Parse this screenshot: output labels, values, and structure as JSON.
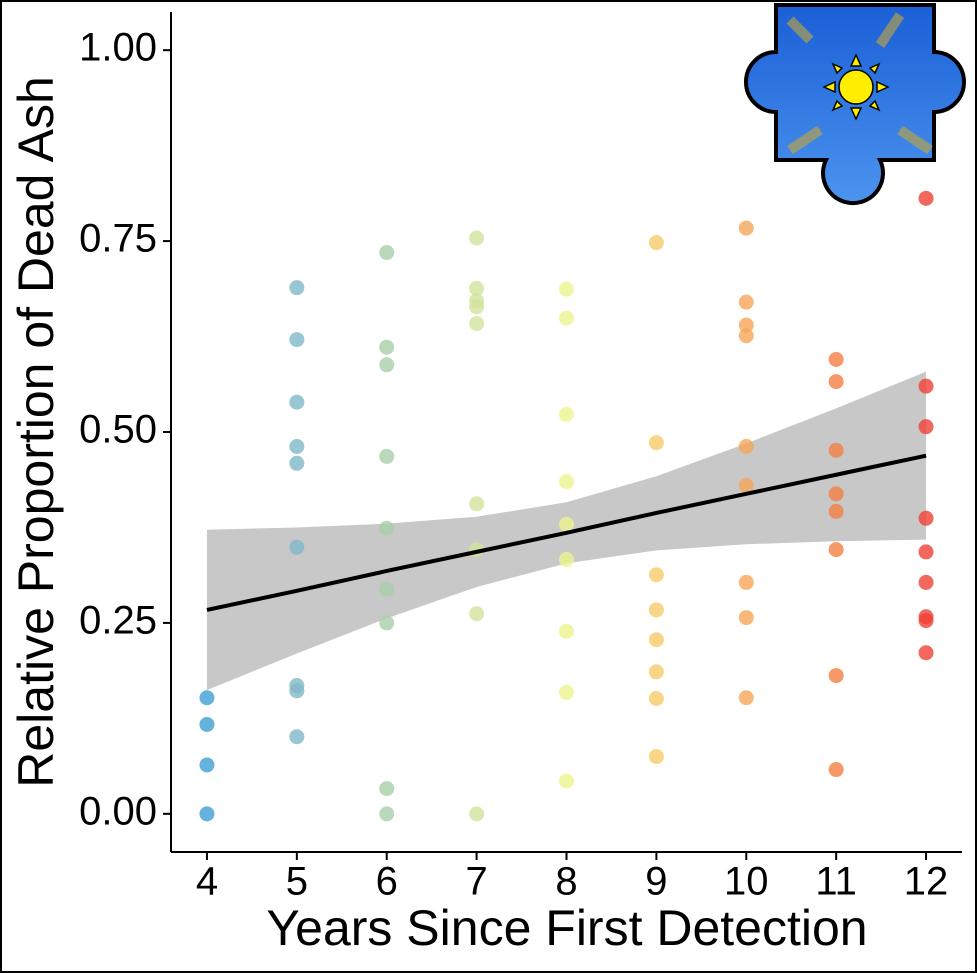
{
  "chart_data": {
    "type": "scatter",
    "xlabel": "Years Since First Detection",
    "ylabel": "Relative Proportion of Dead Ash",
    "xlim": [
      3.6,
      12.4
    ],
    "ylim": [
      -0.05,
      1.05
    ],
    "xticks": [
      4,
      5,
      6,
      7,
      8,
      9,
      10,
      11,
      12
    ],
    "yticks": [
      {
        "value": 0,
        "label": "0.00"
      },
      {
        "value": 0.25,
        "label": "0.25"
      },
      {
        "value": 0.5,
        "label": "0.50"
      },
      {
        "value": 0.75,
        "label": "0.75"
      },
      {
        "value": 1,
        "label": "1.00"
      }
    ],
    "series": [
      {
        "color": "#3f9fd4",
        "x": [
          4,
          4,
          4,
          4
        ],
        "values": [
          0.152,
          0.117,
          0.064,
          0
        ]
      },
      {
        "color": "#80b8c8",
        "x": [
          5,
          5,
          5,
          5,
          5,
          5,
          5,
          5,
          5
        ],
        "values": [
          0.689,
          0.621,
          0.539,
          0.481,
          0.459,
          0.349,
          0.168,
          0.161,
          0.101
        ]
      },
      {
        "color": "#a9cea9",
        "x": [
          6,
          6,
          6,
          6,
          6,
          6,
          6,
          6,
          6
        ],
        "values": [
          0.735,
          0.611,
          0.588,
          0.468,
          0.374,
          0.294,
          0.25,
          0.033,
          0
        ]
      },
      {
        "color": "#cfe39b",
        "x": [
          7,
          7,
          7,
          7,
          7,
          7,
          7,
          7,
          7
        ],
        "values": [
          0.754,
          0.688,
          0.672,
          0.664,
          0.642,
          0.406,
          0.346,
          0.262,
          0
        ]
      },
      {
        "color": "#eef48e",
        "x": [
          8,
          8,
          8,
          8,
          8,
          8,
          8,
          8,
          8
        ],
        "values": [
          0.687,
          0.649,
          0.523,
          0.435,
          0.379,
          0.333,
          0.239,
          0.159,
          0.043
        ]
      },
      {
        "color": "#f8cc69",
        "x": [
          9,
          9,
          9,
          9,
          9,
          9,
          9,
          9
        ],
        "values": [
          0.748,
          0.486,
          0.313,
          0.267,
          0.228,
          0.186,
          0.151,
          0.075
        ]
      },
      {
        "color": "#f7a65a",
        "x": [
          10,
          10,
          10,
          10,
          10,
          10,
          10,
          10,
          10
        ],
        "values": [
          0.767,
          0.67,
          0.64,
          0.626,
          0.481,
          0.43,
          0.303,
          0.257,
          0.152
        ]
      },
      {
        "color": "#f47f44",
        "x": [
          11,
          11,
          11,
          11,
          11,
          11,
          11,
          11
        ],
        "values": [
          0.595,
          0.566,
          0.476,
          0.419,
          0.396,
          0.346,
          0.181,
          0.058
        ]
      },
      {
        "color": "#ef4136",
        "x": [
          12,
          12,
          12,
          12,
          12,
          12,
          12,
          12,
          12
        ],
        "values": [
          0.806,
          0.56,
          0.507,
          0.387,
          0.343,
          0.303,
          0.258,
          0.253,
          0.211
        ]
      }
    ],
    "fit": {
      "color": "#000000",
      "band_color": "#c8c8c8",
      "x": [
        4,
        5,
        6,
        7,
        8,
        9,
        10,
        11,
        12
      ],
      "values": [
        0.267,
        0.292,
        0.318,
        0.343,
        0.368,
        0.394,
        0.419,
        0.444,
        0.469
      ],
      "lower": [
        0.162,
        0.21,
        0.256,
        0.297,
        0.328,
        0.345,
        0.353,
        0.357,
        0.359
      ],
      "upper": [
        0.372,
        0.375,
        0.38,
        0.389,
        0.408,
        0.442,
        0.485,
        0.531,
        0.579
      ]
    }
  }
}
